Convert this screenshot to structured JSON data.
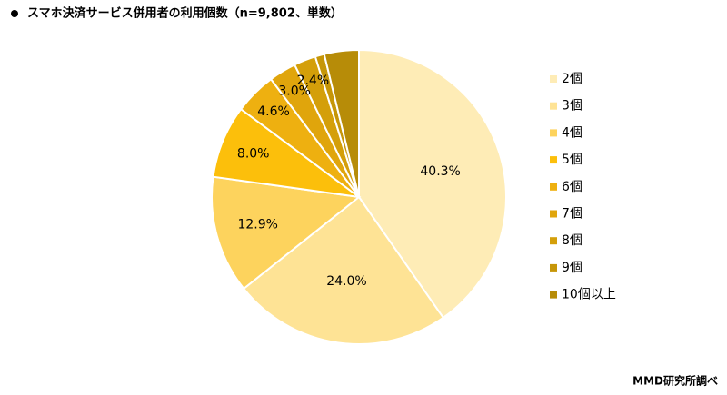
{
  "chart_data": {
    "type": "pie",
    "title": "スマホ決済サービス併用者の利用個数（n=9,802、単数）",
    "source": "MMD研究所調べ",
    "categories": [
      "2個",
      "3個",
      "4個",
      "5個",
      "6個",
      "7個",
      "8個",
      "9個",
      "10個以上"
    ],
    "values": [
      40.3,
      24.0,
      12.9,
      8.0,
      4.6,
      3.0,
      2.4,
      1.0,
      3.8
    ],
    "value_labels": [
      "40.3%",
      "24.0%",
      "12.9%",
      "8.0%",
      "4.6%",
      "3.0%",
      "2.4%",
      null,
      null
    ],
    "colors": [
      "#feecb6",
      "#fee395",
      "#fdd35d",
      "#fcbf0b",
      "#eeb010",
      "#e0a50c",
      "#d49f0a",
      "#c69608",
      "#b78c08"
    ],
    "legend": "right"
  }
}
